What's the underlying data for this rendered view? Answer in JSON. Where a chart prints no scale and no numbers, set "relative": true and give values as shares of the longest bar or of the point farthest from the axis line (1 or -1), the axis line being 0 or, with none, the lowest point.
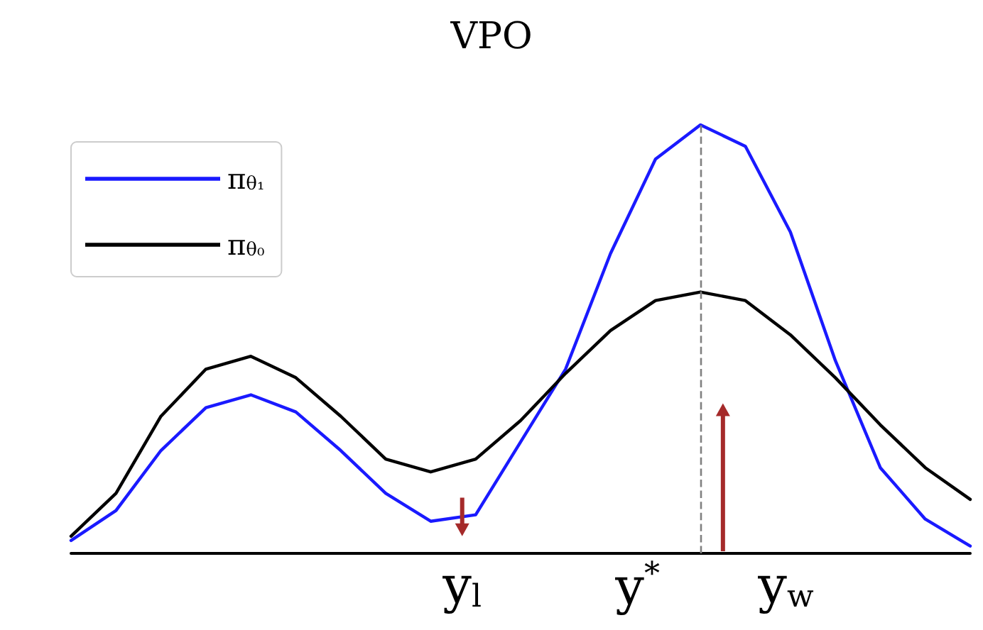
{
  "chart_data": {
    "type": "line",
    "title": "VPO",
    "relative": true,
    "grid": false,
    "legend": "top left",
    "marker": "none",
    "line_style": "solid",
    "categories": [
      null,
      null,
      null,
      null,
      null,
      null,
      null,
      null,
      null,
      null,
      null,
      null,
      null,
      null,
      null,
      null,
      null,
      null,
      null,
      null,
      null
    ],
    "series": [
      {
        "name": "π$_{θ₁}$",
        "color": "#1a1aff",
        "values": [
          0.03,
          0.1,
          0.24,
          0.34,
          0.37,
          0.33,
          0.24,
          0.14,
          0.075,
          0.09,
          0.26,
          0.43,
          0.7,
          0.92,
          1.0,
          0.95,
          0.75,
          0.45,
          0.2,
          0.08,
          0.017
        ]
      },
      {
        "name": "π$_{θ₀}$",
        "color": "#000000",
        "values": [
          0.04,
          0.14,
          0.32,
          0.43,
          0.46,
          0.41,
          0.32,
          0.22,
          0.19,
          0.22,
          0.31,
          0.42,
          0.52,
          0.59,
          0.61,
          0.59,
          0.51,
          0.41,
          0.3,
          0.2,
          0.126
        ]
      }
    ],
    "annotations": [
      "y$_{l}$",
      "y$^{*}$",
      "y$_{w}$"
    ]
  }
}
